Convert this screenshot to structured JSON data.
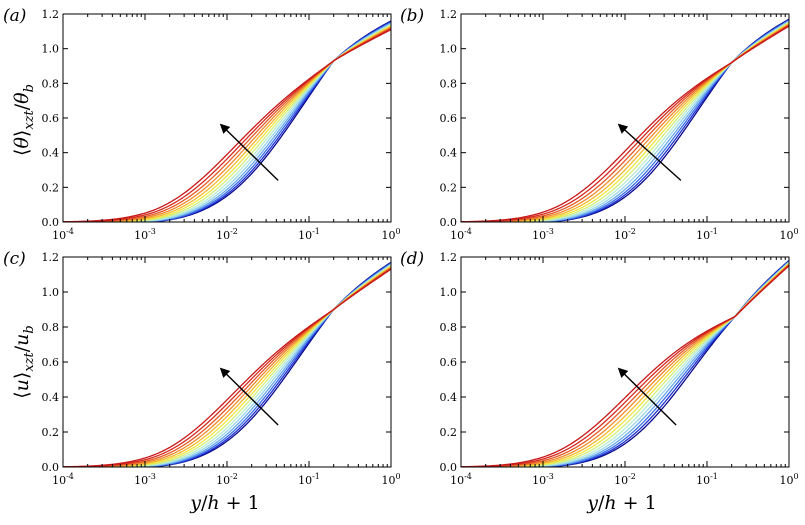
{
  "figure": {
    "xlabel": "y/h + 1",
    "xlabel_parts": {
      "y": "y",
      "slash": "/",
      "h": "h",
      "tail": " + 1"
    },
    "ylabel_top": {
      "text": "⟨θ⟩_xzt/θ_b",
      "open": "⟨",
      "var": "θ",
      "close": "⟩",
      "sub": "xzt",
      "slash": "/",
      "den": "θ",
      "den_sub": "b"
    },
    "ylabel_bottom": {
      "text": "⟨u⟩_xzt/u_b",
      "open": "⟨",
      "var": "u",
      "close": "⟩",
      "sub": "xzt",
      "slash": "/",
      "den": "u",
      "den_sub": "b"
    }
  },
  "colors": {
    "curves": [
      "#0a0a8c",
      "#1f2fd0",
      "#3a70e8",
      "#68a8ee",
      "#9ad6ea",
      "#b6ecd2",
      "#d4ee7a",
      "#f0e640",
      "#f6b830",
      "#f08a2c",
      "#e45a26",
      "#d42a20",
      "#c81818"
    ],
    "axes": "#000000",
    "arrow": "#000000"
  },
  "chart_data": [
    {
      "type": "line",
      "panel_label": "(a)",
      "title": "",
      "xscale": "log",
      "xlim": [
        0.0001,
        1
      ],
      "ylim": [
        0,
        1.2
      ],
      "xticks": [
        {
          "value": 0.0001,
          "base": "10",
          "exp": "-4"
        },
        {
          "value": 0.001,
          "base": "10",
          "exp": "-3"
        },
        {
          "value": 0.01,
          "base": "10",
          "exp": "-2"
        },
        {
          "value": 0.1,
          "base": "10",
          "exp": "-1"
        },
        {
          "value": 1,
          "base": "10",
          "exp": "0"
        }
      ],
      "yticks": [
        {
          "value": 0,
          "label": "0.0"
        },
        {
          "value": 0.2,
          "label": "0.2"
        },
        {
          "value": 0.4,
          "label": "0.4"
        },
        {
          "value": 0.6,
          "label": "0.6"
        },
        {
          "value": 0.8,
          "label": "0.8"
        },
        {
          "value": 1.0,
          "label": "1.0"
        },
        {
          "value": 1.2,
          "label": "1.2"
        }
      ],
      "ylabel": "⟨θ⟩_xzt/θ_b",
      "xlabel": "",
      "curve_family": {
        "x0_min": 0.0085,
        "x0_max": 0.056,
        "A_min": 0.52,
        "A_max": 0.6,
        "sigma_min": 0.6,
        "sigma_max": 0.68,
        "y_end_min": 1.11,
        "y_end_max": 1.16,
        "y_cross": 0.93,
        "cross_x": 0.2
      },
      "arrow": {
        "from": {
          "x": 0.042,
          "y": 0.24
        },
        "to": {
          "x": 0.0085,
          "y": 0.56
        }
      }
    },
    {
      "type": "line",
      "panel_label": "(b)",
      "title": "",
      "xscale": "log",
      "xlim": [
        0.0001,
        1
      ],
      "ylim": [
        0,
        1.2
      ],
      "xticks": [
        {
          "value": 0.0001,
          "base": "10",
          "exp": "-4"
        },
        {
          "value": 0.001,
          "base": "10",
          "exp": "-3"
        },
        {
          "value": 0.01,
          "base": "10",
          "exp": "-2"
        },
        {
          "value": 0.1,
          "base": "10",
          "exp": "-1"
        },
        {
          "value": 1,
          "base": "10",
          "exp": "0"
        }
      ],
      "yticks": [
        {
          "value": 0,
          "label": "0.0"
        },
        {
          "value": 0.2,
          "label": "0.2"
        },
        {
          "value": 0.4,
          "label": "0.4"
        },
        {
          "value": 0.6,
          "label": "0.6"
        },
        {
          "value": 0.8,
          "label": "0.8"
        },
        {
          "value": 1.0,
          "label": "1.0"
        },
        {
          "value": 1.2,
          "label": "1.2"
        }
      ],
      "ylabel": "",
      "xlabel": "",
      "curve_family": {
        "x0_min": 0.0085,
        "x0_max": 0.056,
        "A_min": 0.6,
        "A_max": 0.66,
        "sigma_min": 0.6,
        "sigma_max": 0.68,
        "y_end_min": 1.13,
        "y_end_max": 1.17,
        "y_cross": 0.92,
        "cross_x": 0.2
      },
      "arrow": {
        "from": {
          "x": 0.048,
          "y": 0.24
        },
        "to": {
          "x": 0.0085,
          "y": 0.56
        }
      }
    },
    {
      "type": "line",
      "panel_label": "(c)",
      "title": "",
      "xscale": "log",
      "xlim": [
        0.0001,
        1
      ],
      "ylim": [
        0,
        1.2
      ],
      "xticks": [
        {
          "value": 0.0001,
          "base": "10",
          "exp": "-4"
        },
        {
          "value": 0.001,
          "base": "10",
          "exp": "-3"
        },
        {
          "value": 0.01,
          "base": "10",
          "exp": "-2"
        },
        {
          "value": 0.1,
          "base": "10",
          "exp": "-1"
        },
        {
          "value": 1,
          "base": "10",
          "exp": "0"
        }
      ],
      "yticks": [
        {
          "value": 0,
          "label": "0.0"
        },
        {
          "value": 0.2,
          "label": "0.2"
        },
        {
          "value": 0.4,
          "label": "0.4"
        },
        {
          "value": 0.6,
          "label": "0.6"
        },
        {
          "value": 0.8,
          "label": "0.8"
        },
        {
          "value": 1.0,
          "label": "1.0"
        },
        {
          "value": 1.2,
          "label": "1.2"
        }
      ],
      "ylabel": "⟨u⟩_xzt/u_b",
      "xlabel": "y/h + 1",
      "curve_family": {
        "x0_min": 0.0085,
        "x0_max": 0.052,
        "A_min": 0.54,
        "A_max": 0.6,
        "sigma_min": 0.6,
        "sigma_max": 0.68,
        "y_end_min": 1.13,
        "y_end_max": 1.17,
        "y_cross": 0.9,
        "cross_x": 0.2
      },
      "arrow": {
        "from": {
          "x": 0.042,
          "y": 0.24
        },
        "to": {
          "x": 0.0085,
          "y": 0.56
        }
      }
    },
    {
      "type": "line",
      "panel_label": "(d)",
      "title": "",
      "xscale": "log",
      "xlim": [
        0.0001,
        1
      ],
      "ylim": [
        0,
        1.2
      ],
      "xticks": [
        {
          "value": 0.0001,
          "base": "10",
          "exp": "-4"
        },
        {
          "value": 0.001,
          "base": "10",
          "exp": "-3"
        },
        {
          "value": 0.01,
          "base": "10",
          "exp": "-2"
        },
        {
          "value": 0.1,
          "base": "10",
          "exp": "-1"
        },
        {
          "value": 1,
          "base": "10",
          "exp": "0"
        }
      ],
      "yticks": [
        {
          "value": 0,
          "label": "0.0"
        },
        {
          "value": 0.2,
          "label": "0.2"
        },
        {
          "value": 0.4,
          "label": "0.4"
        },
        {
          "value": 0.6,
          "label": "0.6"
        },
        {
          "value": 0.8,
          "label": "0.8"
        },
        {
          "value": 1.0,
          "label": "1.0"
        },
        {
          "value": 1.2,
          "label": "1.2"
        }
      ],
      "ylabel": "",
      "xlabel": "y/h + 1",
      "curve_family": {
        "x0_min": 0.0085,
        "x0_max": 0.052,
        "A_min": 0.6,
        "A_max": 0.66,
        "sigma_min": 0.6,
        "sigma_max": 0.68,
        "y_end_min": 1.15,
        "y_end_max": 1.18,
        "y_cross": 0.86,
        "cross_x": 0.22
      },
      "arrow": {
        "from": {
          "x": 0.042,
          "y": 0.24
        },
        "to": {
          "x": 0.0085,
          "y": 0.56
        }
      }
    }
  ]
}
